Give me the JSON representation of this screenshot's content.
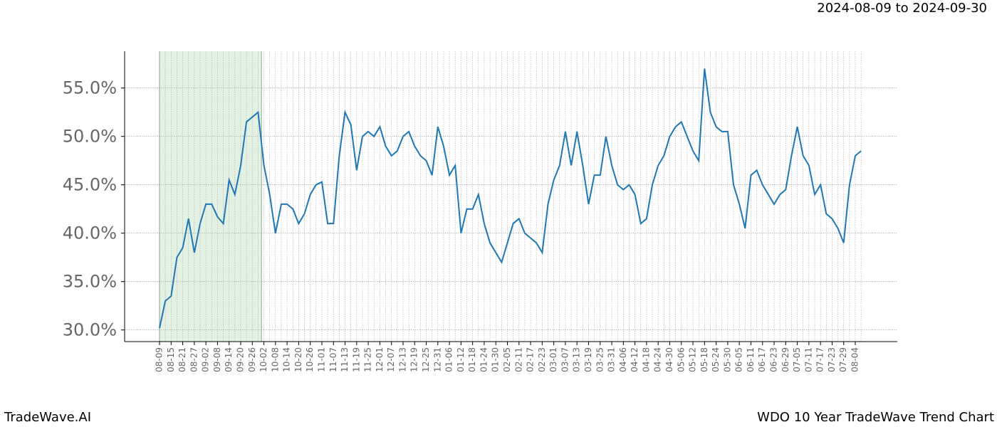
{
  "chart_data": {
    "type": "line",
    "title": "WDO 10 Year TradeWave Trend Chart",
    "subtitle": "2024-08-09 to 2024-09-30",
    "brand": "TradeWave.AI",
    "x": [
      "08-09",
      "08-12",
      "08-15",
      "08-18",
      "08-21",
      "08-24",
      "08-27",
      "08-30",
      "09-02",
      "09-05",
      "09-08",
      "09-11",
      "09-14",
      "09-17",
      "09-20",
      "09-23",
      "09-26",
      "09-29",
      "10-02",
      "10-05",
      "10-08",
      "10-11",
      "10-14",
      "10-17",
      "10-20",
      "10-23",
      "10-26",
      "10-29",
      "11-01",
      "11-04",
      "11-07",
      "11-10",
      "11-13",
      "11-16",
      "11-19",
      "11-22",
      "11-25",
      "11-28",
      "12-01",
      "12-04",
      "12-07",
      "12-10",
      "12-13",
      "12-16",
      "12-19",
      "12-22",
      "12-25",
      "12-28",
      "12-31",
      "01-03",
      "01-06",
      "01-09",
      "01-12",
      "01-15",
      "01-18",
      "01-21",
      "01-24",
      "01-27",
      "01-30",
      "02-02",
      "02-05",
      "02-08",
      "02-11",
      "02-14",
      "02-17",
      "02-20",
      "02-23",
      "02-26",
      "03-01",
      "03-04",
      "03-07",
      "03-10",
      "03-13",
      "03-16",
      "03-19",
      "03-22",
      "03-25",
      "03-28",
      "03-31",
      "04-03",
      "04-06",
      "04-09",
      "04-12",
      "04-15",
      "04-18",
      "04-21",
      "04-24",
      "04-27",
      "04-30",
      "05-03",
      "05-06",
      "05-09",
      "05-12",
      "05-15",
      "05-18",
      "05-21",
      "05-24",
      "05-27",
      "05-30",
      "06-02",
      "06-05",
      "06-08",
      "06-11",
      "06-14",
      "06-17",
      "06-20",
      "06-23",
      "06-26",
      "06-29",
      "07-02",
      "07-05",
      "07-08",
      "07-11",
      "07-14",
      "07-17",
      "07-20",
      "07-23",
      "07-26",
      "07-29",
      "08-01",
      "08-04",
      "08-07"
    ],
    "series": [
      {
        "name": "WDO",
        "color": "#1f77b4",
        "values": [
          30.2,
          33,
          33.5,
          37.5,
          38.5,
          41.5,
          38,
          41,
          43,
          43,
          41.7,
          41,
          45.5,
          44,
          47,
          51.5,
          52,
          52.5,
          47,
          44,
          40,
          43,
          43,
          42.5,
          41,
          42,
          44,
          45,
          45.3,
          41,
          41,
          48,
          52.5,
          51.2,
          46.5,
          50,
          50.5,
          50,
          51,
          49,
          48,
          48.5,
          50,
          50.5,
          49,
          48,
          47.5,
          46,
          51,
          49,
          46,
          47,
          40,
          42.5,
          42.5,
          44,
          41,
          39,
          38,
          37,
          39,
          41,
          41.5,
          40,
          39.5,
          39,
          38,
          43,
          45.5,
          47,
          50.5,
          47,
          50.5,
          47,
          43,
          46,
          46,
          50,
          47,
          45,
          44.5,
          45,
          44,
          41,
          41.5,
          45,
          47,
          48,
          50,
          51,
          51.5,
          50,
          48.5,
          47.5,
          57,
          52.5,
          51,
          50.5,
          50.5,
          45,
          43,
          40.5,
          46,
          46.5,
          45,
          44,
          43,
          44,
          44.5,
          48,
          51,
          48,
          47,
          44,
          45,
          42,
          41.5,
          40.5,
          39,
          45,
          48,
          48.5
        ]
      }
    ],
    "xticks": [
      "08-09",
      "08-15",
      "08-21",
      "08-27",
      "09-02",
      "09-08",
      "09-14",
      "09-20",
      "09-26",
      "10-02",
      "10-08",
      "10-14",
      "10-20",
      "10-26",
      "11-01",
      "11-07",
      "11-13",
      "11-19",
      "11-25",
      "12-01",
      "12-07",
      "12-13",
      "12-19",
      "12-25",
      "12-31",
      "01-06",
      "01-12",
      "01-18",
      "01-24",
      "01-30",
      "02-05",
      "02-11",
      "02-17",
      "02-23",
      "03-01",
      "03-07",
      "03-13",
      "03-19",
      "03-25",
      "03-31",
      "04-06",
      "04-12",
      "04-18",
      "04-24",
      "04-30",
      "05-06",
      "05-12",
      "05-18",
      "05-24",
      "05-30",
      "06-05",
      "06-11",
      "06-17",
      "06-23",
      "06-29",
      "07-05",
      "07-11",
      "07-17",
      "07-23",
      "07-29",
      "08-04"
    ],
    "ylim": [
      28.8,
      58.8
    ],
    "yticks": [
      {
        "value": 30,
        "label": "30.0%"
      },
      {
        "value": 35,
        "label": "35.0%"
      },
      {
        "value": 40,
        "label": "40.0%"
      },
      {
        "value": 45,
        "label": "45.0%"
      },
      {
        "value": 50,
        "label": "50.0%"
      },
      {
        "value": 55,
        "label": "55.0%"
      }
    ],
    "grid": true,
    "highlight": {
      "start": "08-09",
      "end": "09-29",
      "color": "#e3f1e3",
      "edge": "#a8c8a8"
    }
  }
}
